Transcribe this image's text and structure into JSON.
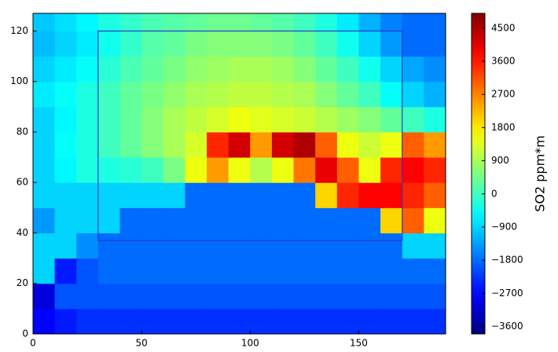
{
  "chart_data": {
    "type": "heatmap",
    "x": [
      5,
      15,
      25,
      35,
      45,
      55,
      65,
      75,
      85,
      95,
      105,
      115,
      125,
      135,
      145,
      155,
      165,
      175,
      185
    ],
    "y": [
      5,
      15,
      25,
      35,
      45,
      55,
      65,
      75,
      85,
      95,
      105,
      115,
      125
    ],
    "z": [
      [
        -2700,
        -2500,
        -2300,
        -2300,
        -2300,
        -2300,
        -2300,
        -2300,
        -2300,
        -2300,
        -2300,
        -2300,
        -2300,
        -2300,
        -2300,
        -2300,
        -2300,
        -2300,
        -2300
      ],
      [
        -3000,
        -2000,
        -2000,
        -2000,
        -2000,
        -2000,
        -2000,
        -2000,
        -2000,
        -2000,
        -2000,
        -2000,
        -2000,
        -2000,
        -2000,
        -2000,
        -2000,
        -2000,
        -2000
      ],
      [
        -900,
        -2500,
        -2000,
        -1800,
        -1800,
        -1800,
        -1800,
        -1800,
        -1800,
        -1800,
        -1800,
        -1800,
        -1800,
        -1800,
        -1800,
        -1800,
        -1800,
        -1800,
        -1800
      ],
      [
        -900,
        -900,
        -1500,
        -1800,
        -1800,
        -1800,
        -1800,
        -1800,
        -1800,
        -1800,
        -1800,
        -1800,
        -1800,
        -1800,
        -1800,
        -1800,
        -1800,
        -900,
        -900
      ],
      [
        -1400,
        -900,
        -900,
        -900,
        -1800,
        -1800,
        -1800,
        -1800,
        -1800,
        -1800,
        -1800,
        -1800,
        -1800,
        -1800,
        -1800,
        -1800,
        2000,
        3000,
        1500
      ],
      [
        -900,
        -900,
        -900,
        -900,
        -900,
        -900,
        -900,
        -1800,
        -1800,
        -1800,
        -1800,
        -1800,
        -1800,
        2000,
        3500,
        3800,
        3800,
        3500,
        3000
      ],
      [
        -900,
        -600,
        -300,
        -300,
        -200,
        0,
        500,
        1500,
        2500,
        1500,
        1000,
        1500,
        2800,
        4000,
        3000,
        1500,
        3500,
        3800,
        3500
      ],
      [
        -900,
        -500,
        -300,
        0,
        300,
        600,
        900,
        1300,
        3500,
        4200,
        2500,
        4200,
        4500,
        3000,
        1500,
        1200,
        1500,
        3000,
        2500
      ],
      [
        -900,
        -600,
        -300,
        0,
        300,
        600,
        900,
        1100,
        1300,
        1500,
        1400,
        1300,
        1200,
        1000,
        800,
        600,
        300,
        0,
        -300
      ],
      [
        -700,
        -500,
        -300,
        0,
        300,
        500,
        700,
        900,
        1000,
        1100,
        1100,
        1000,
        900,
        600,
        300,
        0,
        -500,
        -900,
        -1200
      ],
      [
        -900,
        -700,
        -500,
        -200,
        100,
        300,
        500,
        700,
        800,
        900,
        900,
        800,
        600,
        300,
        0,
        -400,
        -900,
        -1300,
        -1500
      ],
      [
        -1100,
        -900,
        -700,
        -400,
        -100,
        200,
        300,
        500,
        600,
        600,
        600,
        500,
        300,
        0,
        -400,
        -900,
        -1400,
        -1800,
        -1800
      ],
      [
        -1000,
        -800,
        -600,
        -300,
        -100,
        100,
        200,
        300,
        400,
        400,
        300,
        200,
        0,
        -300,
        -700,
        -1200,
        -1600,
        -1800,
        -1800
      ]
    ],
    "xlim": [
      0,
      190
    ],
    "ylim": [
      0,
      127
    ],
    "xticks": [
      0,
      50,
      100,
      150
    ],
    "yticks": [
      0,
      20,
      40,
      60,
      80,
      100,
      120
    ],
    "region": {
      "x": [
        30,
        170
      ],
      "y": [
        37,
        120
      ],
      "color": "#2a3cc8"
    },
    "colorbar": {
      "label": "SO2 ppm*m",
      "clim": [
        -3800,
        4900
      ],
      "ticks": [
        {
          "value": -3600,
          "label": "−3600"
        },
        {
          "value": -2700,
          "label": "−2700"
        },
        {
          "value": -1800,
          "label": "−1800"
        },
        {
          "value": -900,
          "label": "−900"
        },
        0,
        900,
        1800,
        2700,
        3600,
        4500
      ]
    }
  }
}
